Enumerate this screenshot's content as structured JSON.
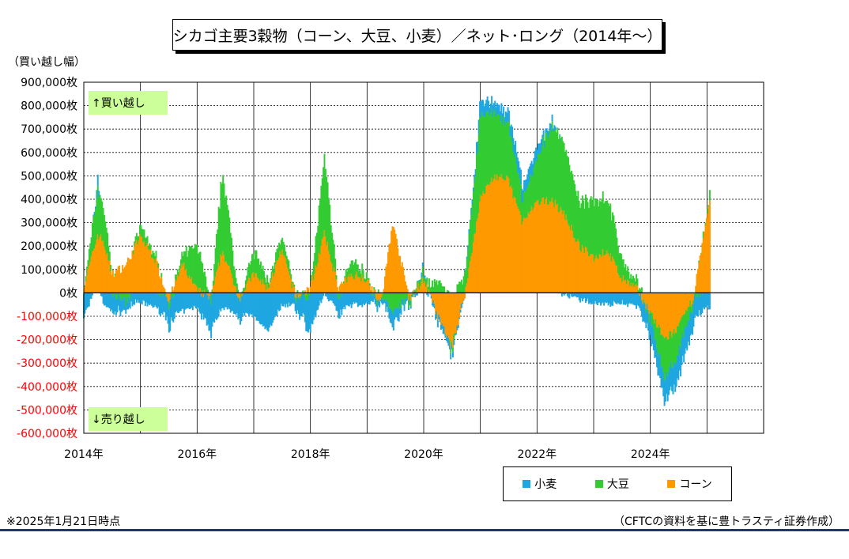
{
  "title": "シカゴ主要3穀物（コーン、大豆、小麦）／ネット･ロング（2014年～）",
  "y_unit_label": "（買い越し幅）",
  "band_labels": {
    "top": "↑買い越し",
    "bottom": "↓売り越し"
  },
  "footnote": "※2025年1月21日時点",
  "source": "（CFTCの資料を基に豊トラスティ証券作成）",
  "colors": {
    "wheat": "#1ea7e1",
    "soy": "#33cc33",
    "corn": "#ff9900",
    "negative_tick": "#ff0000"
  },
  "chart_data": {
    "type": "area",
    "stacked": true,
    "title": "シカゴ主要3穀物（コーン、大豆、小麦）／ネット･ロング（2014年～）",
    "ylabel": "（買い越し幅）",
    "xlabel": "",
    "ylim": [
      -600000,
      900000
    ],
    "xlim": [
      2014,
      2026
    ],
    "grid": true,
    "legend_position": "bottom-right",
    "y_ticks": [
      "900,000枚",
      "800,000枚",
      "700,000枚",
      "600,000枚",
      "500,000枚",
      "400,000枚",
      "300,000枚",
      "200,000枚",
      "100,000枚",
      "0枚",
      "-100,000枚",
      "-200,000枚",
      "-300,000枚",
      "-400,000枚",
      "-500,000枚",
      "-600,000枚"
    ],
    "y_tick_values": [
      900000,
      800000,
      700000,
      600000,
      500000,
      400000,
      300000,
      200000,
      100000,
      0,
      -100000,
      -200000,
      -300000,
      -400000,
      -500000,
      -600000
    ],
    "x_ticks": [
      "2014年",
      "2016年",
      "2018年",
      "2020年",
      "2022年",
      "2024年"
    ],
    "x_tick_values": [
      2014,
      2016,
      2018,
      2020,
      2022,
      2024
    ],
    "x": [
      2014.0,
      2014.25,
      2014.35,
      2014.5,
      2014.75,
      2015.0,
      2015.25,
      2015.5,
      2015.75,
      2016.0,
      2016.25,
      2016.45,
      2016.75,
      2017.0,
      2017.25,
      2017.5,
      2017.75,
      2018.0,
      2018.25,
      2018.5,
      2018.75,
      2019.0,
      2019.25,
      2019.45,
      2019.75,
      2020.0,
      2020.25,
      2020.5,
      2020.75,
      2021.0,
      2021.25,
      2021.5,
      2021.75,
      2022.0,
      2022.25,
      2022.5,
      2022.75,
      2023.0,
      2023.25,
      2023.5,
      2023.75,
      2024.0,
      2024.25,
      2024.5,
      2024.75,
      2025.05
    ],
    "series": [
      {
        "name": "コーン",
        "key": "corn",
        "values": [
          20000,
          250000,
          220000,
          80000,
          120000,
          240000,
          150000,
          -30000,
          120000,
          10000,
          -20000,
          180000,
          -20000,
          80000,
          20000,
          180000,
          -20000,
          20000,
          250000,
          20000,
          80000,
          60000,
          -50000,
          300000,
          -30000,
          60000,
          -100000,
          -230000,
          20000,
          400000,
          500000,
          480000,
          300000,
          380000,
          400000,
          330000,
          200000,
          150000,
          180000,
          60000,
          20000,
          -80000,
          -200000,
          -150000,
          -30000,
          380000
        ]
      },
      {
        "name": "大豆",
        "key": "soy",
        "values": [
          -20000,
          200000,
          150000,
          0,
          -40000,
          40000,
          20000,
          -20000,
          40000,
          200000,
          -30000,
          350000,
          -30000,
          100000,
          30000,
          50000,
          0,
          -20000,
          330000,
          -20000,
          60000,
          20000,
          -10000,
          -80000,
          -10000,
          30000,
          50000,
          -20000,
          80000,
          350000,
          280000,
          230000,
          100000,
          180000,
          320000,
          300000,
          180000,
          250000,
          230000,
          80000,
          30000,
          -30000,
          -170000,
          -120000,
          -20000,
          30000
        ]
      },
      {
        "name": "小麦",
        "key": "wheat",
        "values": [
          -100000,
          40000,
          -50000,
          -80000,
          -40000,
          -40000,
          -60000,
          -100000,
          -80000,
          -60000,
          -150000,
          -60000,
          -90000,
          -100000,
          -160000,
          -50000,
          -50000,
          -150000,
          0,
          -80000,
          -50000,
          -50000,
          -10000,
          -60000,
          -10000,
          10000,
          -30000,
          -20000,
          0,
          60000,
          40000,
          50000,
          60000,
          50000,
          20000,
          -10000,
          -30000,
          -40000,
          -50000,
          -40000,
          -60000,
          -80000,
          -100000,
          -110000,
          -100000,
          -60000
        ]
      }
    ]
  }
}
